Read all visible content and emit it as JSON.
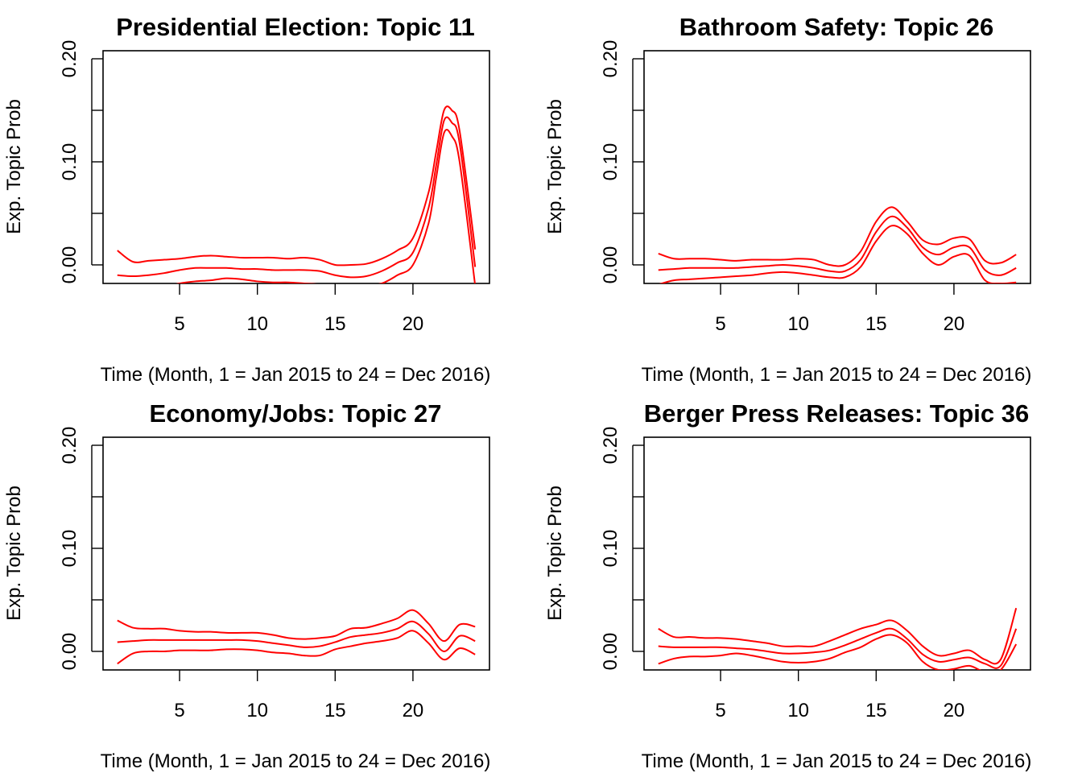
{
  "colors": {
    "series": "#ff0000",
    "axis": "#000000",
    "background": "#ffffff"
  },
  "chart_data": [
    {
      "type": "line",
      "title": "Presidential Election: Topic 11",
      "xlabel": "Time (Month, 1 = Jan 2015 to 24 = Dec 2016)",
      "ylabel": "Exp. Topic Prob",
      "xlim": [
        1,
        24
      ],
      "ylim": [
        -0.018,
        0.2
      ],
      "xticks": [
        5,
        10,
        15,
        20
      ],
      "yticks": [
        0.0,
        0.05,
        0.1,
        0.15,
        0.2
      ],
      "ytick_labels": [
        "0.00",
        "",
        "0.10",
        "",
        "0.20"
      ],
      "grid": false,
      "x": [
        1,
        2,
        3,
        4,
        5,
        6,
        7,
        8,
        9,
        10,
        11,
        12,
        13,
        14,
        15,
        16,
        17,
        18,
        19,
        20,
        21,
        21.5,
        22,
        22.5,
        23,
        24
      ],
      "series": [
        {
          "values": [
            0.014,
            0.003,
            0.004,
            0.005,
            0.006,
            0.008,
            0.009,
            0.008,
            0.007,
            0.007,
            0.007,
            0.006,
            0.007,
            0.005,
            0.0,
            0.0,
            0.001,
            0.006,
            0.014,
            0.026,
            0.07,
            0.11,
            0.15,
            0.15,
            0.13,
            0.015
          ]
        },
        {
          "values": [
            -0.01,
            -0.011,
            -0.01,
            -0.008,
            -0.005,
            -0.003,
            -0.003,
            -0.003,
            -0.004,
            -0.004,
            -0.005,
            -0.005,
            -0.005,
            -0.006,
            -0.01,
            -0.012,
            -0.011,
            -0.006,
            0.002,
            0.012,
            0.055,
            0.097,
            0.14,
            0.138,
            0.118,
            -0.002
          ]
        },
        {
          "values": [
            -0.033,
            -0.032,
            -0.028,
            -0.022,
            -0.018,
            -0.016,
            -0.015,
            -0.013,
            -0.014,
            -0.016,
            -0.017,
            -0.017,
            -0.018,
            -0.019,
            -0.022,
            -0.022,
            -0.02,
            -0.018,
            -0.01,
            0.0,
            0.04,
            0.085,
            0.128,
            0.125,
            0.1,
            -0.02
          ]
        }
      ]
    },
    {
      "type": "line",
      "title": "Bathroom Safety: Topic 26",
      "xlabel": "Time (Month, 1 = Jan 2015 to 24 = Dec 2016)",
      "ylabel": "Exp. Topic Prob",
      "xlim": [
        1,
        24
      ],
      "ylim": [
        -0.018,
        0.2
      ],
      "xticks": [
        5,
        10,
        15,
        20
      ],
      "yticks": [
        0.0,
        0.05,
        0.1,
        0.15,
        0.2
      ],
      "ytick_labels": [
        "0.00",
        "",
        "0.10",
        "",
        "0.20"
      ],
      "grid": false,
      "x": [
        1,
        2,
        3,
        4,
        5,
        6,
        7,
        8,
        9,
        10,
        11,
        12,
        13,
        14,
        15,
        16,
        17,
        18,
        19,
        20,
        21,
        22,
        23,
        24
      ],
      "series": [
        {
          "values": [
            0.011,
            0.006,
            0.006,
            0.006,
            0.005,
            0.004,
            0.005,
            0.005,
            0.005,
            0.006,
            0.005,
            0.0,
            0.0,
            0.013,
            0.042,
            0.056,
            0.042,
            0.024,
            0.02,
            0.026,
            0.025,
            0.004,
            0.002,
            0.01
          ]
        },
        {
          "values": [
            -0.005,
            -0.004,
            -0.003,
            -0.003,
            -0.003,
            -0.003,
            -0.002,
            -0.001,
            0.0,
            -0.001,
            -0.003,
            -0.006,
            -0.006,
            0.005,
            0.032,
            0.047,
            0.036,
            0.017,
            0.01,
            0.017,
            0.017,
            -0.005,
            -0.01,
            -0.003
          ]
        },
        {
          "values": [
            -0.019,
            -0.015,
            -0.014,
            -0.013,
            -0.012,
            -0.011,
            -0.01,
            -0.008,
            -0.007,
            -0.008,
            -0.01,
            -0.012,
            -0.012,
            -0.002,
            0.023,
            0.038,
            0.03,
            0.011,
            0.0,
            0.008,
            0.009,
            -0.015,
            -0.018,
            -0.017
          ]
        }
      ]
    },
    {
      "type": "line",
      "title": "Economy/Jobs: Topic 27",
      "xlabel": "Time (Month, 1 = Jan 2015 to 24 = Dec 2016)",
      "ylabel": "Exp. Topic Prob",
      "xlim": [
        1,
        24
      ],
      "ylim": [
        -0.018,
        0.2
      ],
      "xticks": [
        5,
        10,
        15,
        20
      ],
      "yticks": [
        0.0,
        0.05,
        0.1,
        0.15,
        0.2
      ],
      "ytick_labels": [
        "0.00",
        "",
        "0.10",
        "",
        "0.20"
      ],
      "grid": false,
      "x": [
        1,
        2,
        3,
        4,
        5,
        6,
        7,
        8,
        9,
        10,
        11,
        12,
        13,
        14,
        15,
        16,
        17,
        18,
        19,
        20,
        21,
        22,
        23,
        24
      ],
      "series": [
        {
          "values": [
            0.03,
            0.023,
            0.022,
            0.022,
            0.02,
            0.019,
            0.019,
            0.018,
            0.018,
            0.018,
            0.016,
            0.013,
            0.012,
            0.013,
            0.015,
            0.022,
            0.023,
            0.027,
            0.032,
            0.04,
            0.027,
            0.01,
            0.026,
            0.024
          ]
        },
        {
          "values": [
            0.009,
            0.01,
            0.011,
            0.011,
            0.011,
            0.011,
            0.011,
            0.011,
            0.011,
            0.01,
            0.008,
            0.006,
            0.004,
            0.005,
            0.009,
            0.014,
            0.016,
            0.018,
            0.022,
            0.029,
            0.017,
            0.0,
            0.015,
            0.01
          ]
        },
        {
          "values": [
            -0.012,
            -0.002,
            0.0,
            0.0,
            0.001,
            0.001,
            0.001,
            0.002,
            0.002,
            0.001,
            -0.001,
            -0.002,
            -0.004,
            -0.004,
            0.002,
            0.005,
            0.008,
            0.01,
            0.013,
            0.02,
            0.008,
            -0.008,
            0.003,
            -0.003
          ]
        }
      ]
    },
    {
      "type": "line",
      "title": "Berger Press Releases: Topic 36",
      "xlabel": "Time (Month, 1 = Jan 2015 to 24 = Dec 2016)",
      "ylabel": "Exp. Topic Prob",
      "xlim": [
        1,
        24
      ],
      "ylim": [
        -0.018,
        0.2
      ],
      "xticks": [
        5,
        10,
        15,
        20
      ],
      "yticks": [
        0.0,
        0.05,
        0.1,
        0.15,
        0.2
      ],
      "ytick_labels": [
        "0.00",
        "",
        "0.10",
        "",
        "0.20"
      ],
      "grid": false,
      "x": [
        1,
        2,
        3,
        4,
        5,
        6,
        7,
        8,
        9,
        10,
        11,
        12,
        13,
        14,
        15,
        16,
        17,
        18,
        19,
        20,
        21,
        22,
        23,
        24
      ],
      "series": [
        {
          "values": [
            0.022,
            0.014,
            0.014,
            0.013,
            0.013,
            0.012,
            0.01,
            0.008,
            0.005,
            0.005,
            0.005,
            0.01,
            0.016,
            0.022,
            0.026,
            0.03,
            0.02,
            0.005,
            -0.004,
            -0.002,
            0.001,
            -0.008,
            -0.008,
            0.042
          ]
        },
        {
          "values": [
            0.005,
            0.004,
            0.004,
            0.004,
            0.004,
            0.003,
            0.002,
            0.0,
            -0.002,
            -0.002,
            -0.001,
            0.001,
            0.006,
            0.012,
            0.018,
            0.022,
            0.012,
            -0.003,
            -0.01,
            -0.008,
            -0.006,
            -0.012,
            -0.014,
            0.022
          ]
        },
        {
          "values": [
            -0.012,
            -0.007,
            -0.005,
            -0.005,
            -0.004,
            -0.002,
            -0.004,
            -0.007,
            -0.01,
            -0.011,
            -0.01,
            -0.007,
            -0.001,
            0.004,
            0.012,
            0.016,
            0.008,
            -0.01,
            -0.018,
            -0.017,
            -0.014,
            -0.02,
            -0.018,
            0.007
          ]
        }
      ]
    }
  ]
}
